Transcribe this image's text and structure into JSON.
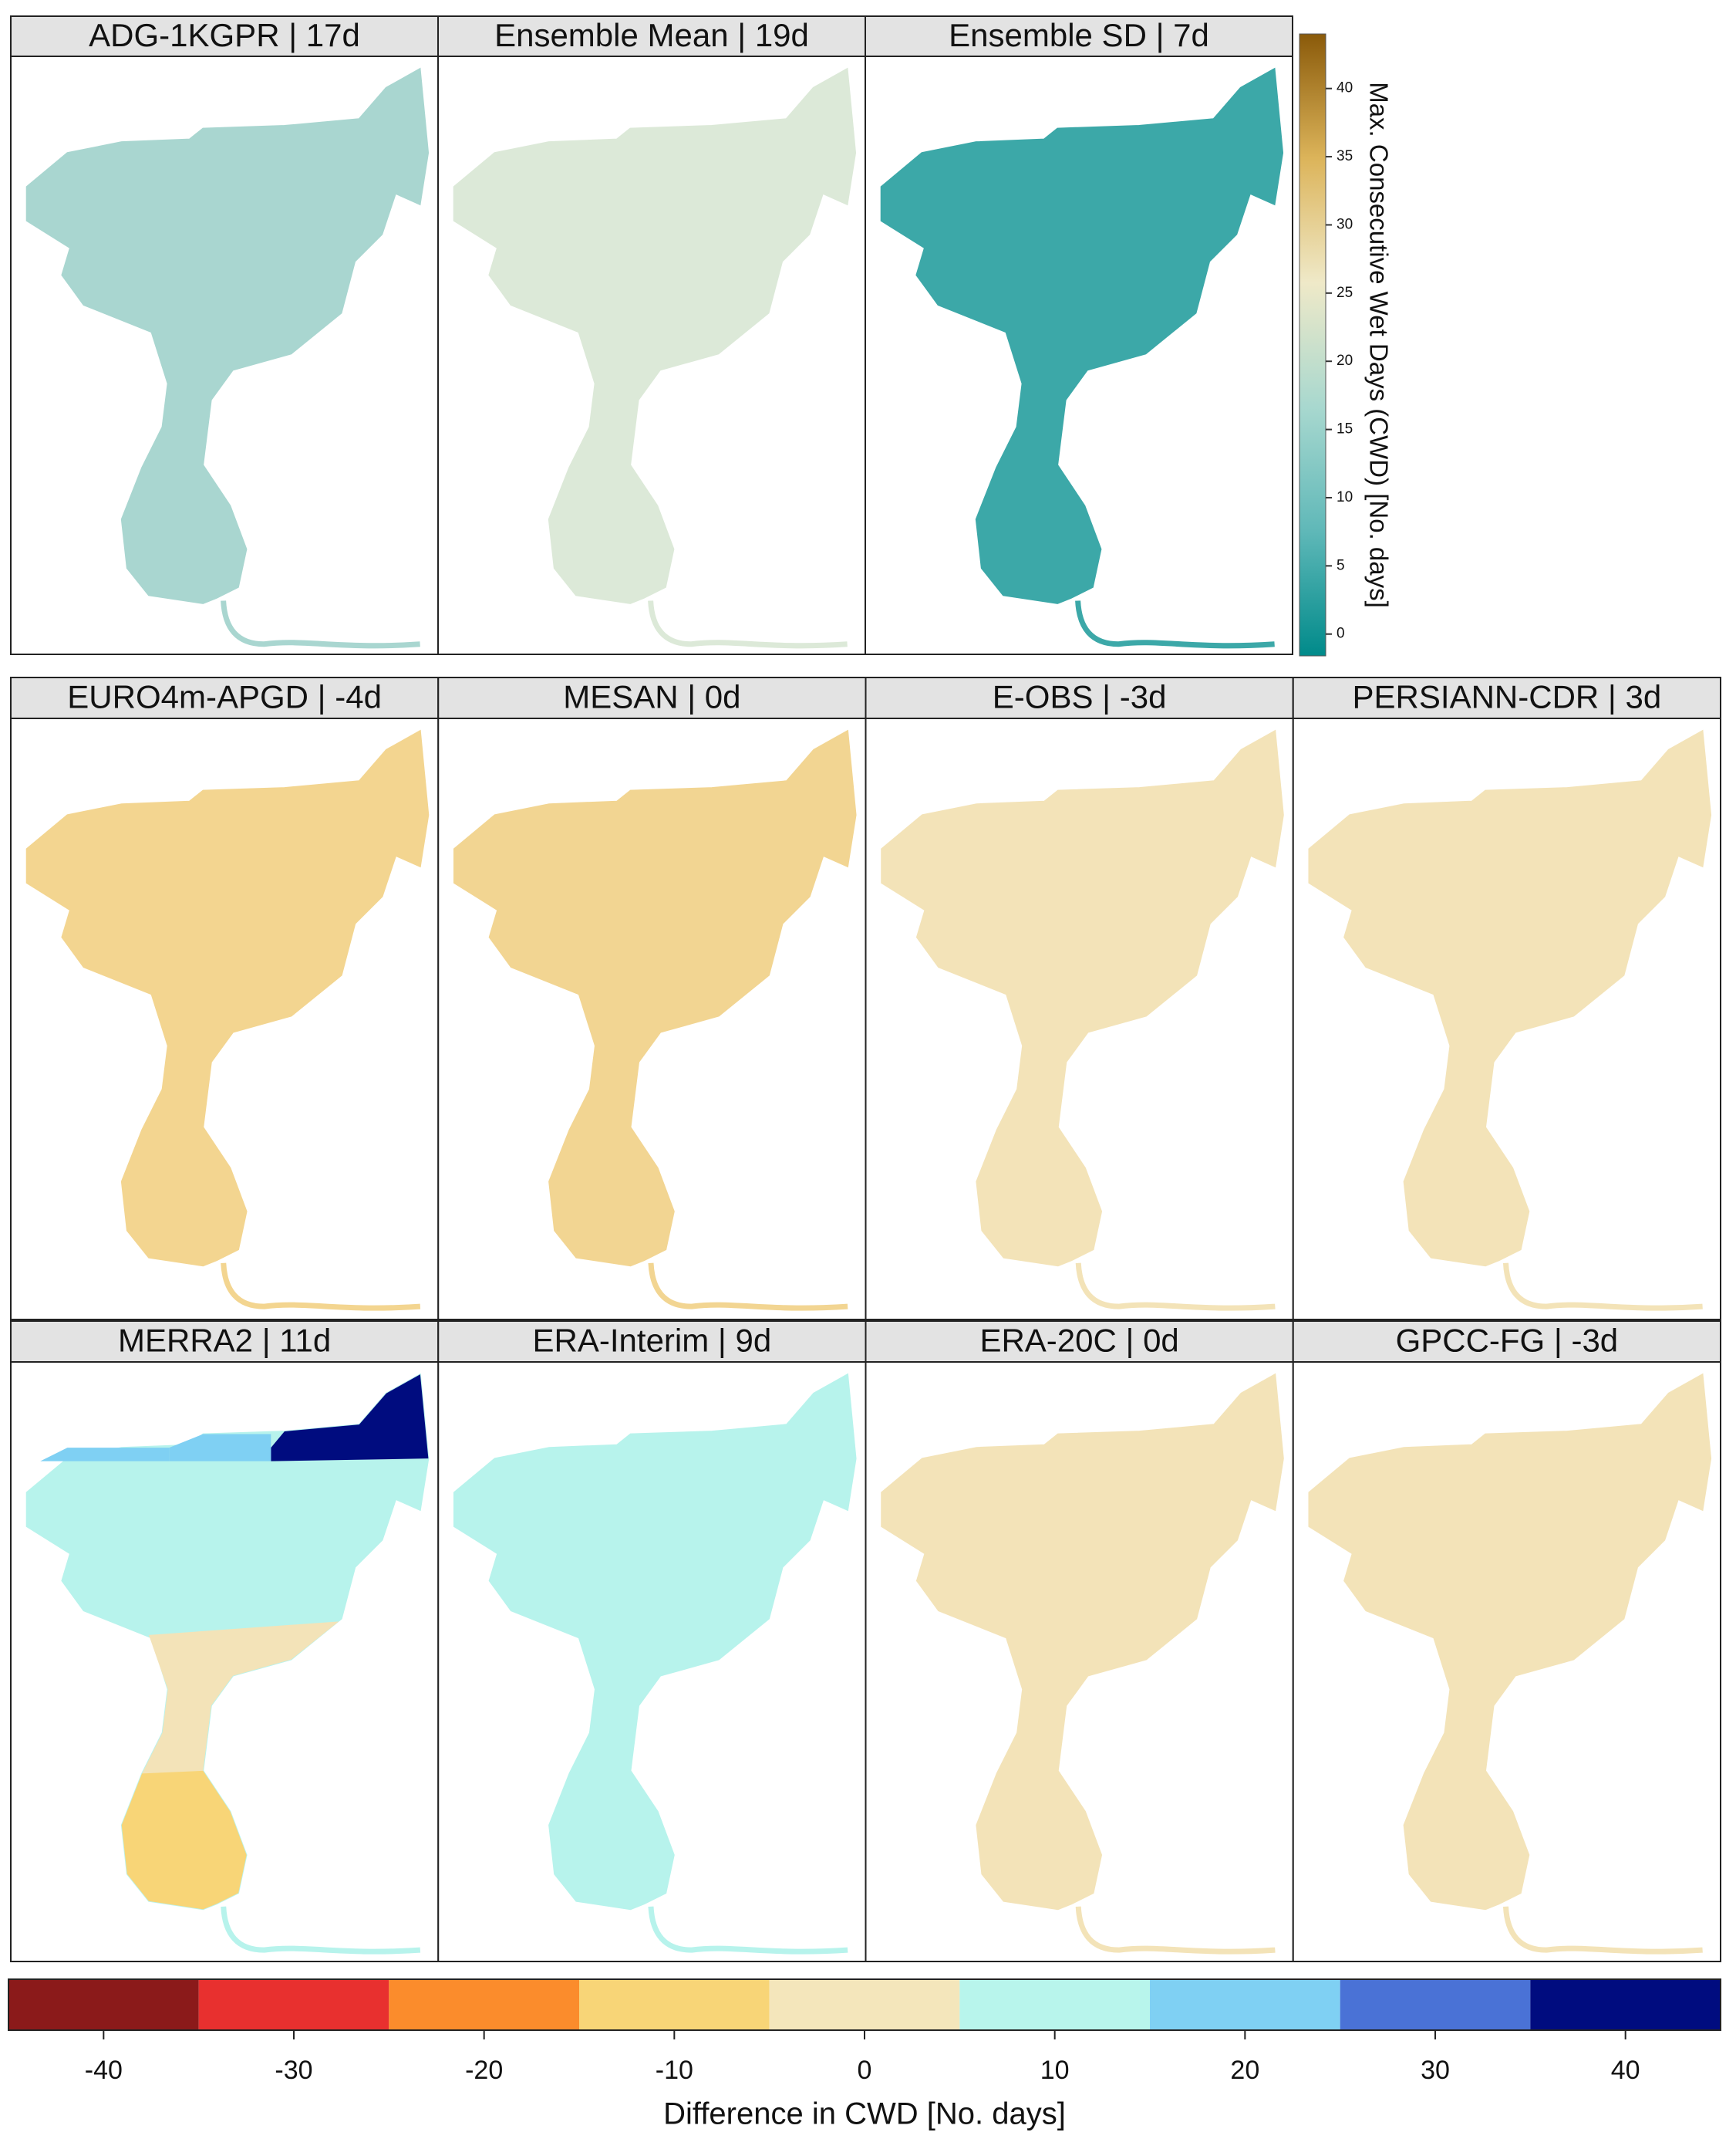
{
  "panels": [
    {
      "title": "ADG-1KGPR | 17d"
    },
    {
      "title": "Ensemble Mean | 19d"
    },
    {
      "title": "Ensemble SD | 7d"
    },
    {
      "title": "EURO4m-APGD | -4d"
    },
    {
      "title": "MESAN | 0d"
    },
    {
      "title": "E-OBS | -3d"
    },
    {
      "title": "PERSIANN-CDR | 3d"
    },
    {
      "title": "MERRA2 | 11d"
    },
    {
      "title": "ERA-Interim | 9d"
    },
    {
      "title": "ERA-20C | 0d"
    },
    {
      "title": "GPCC-FG | -3d"
    }
  ],
  "colorbar_top": {
    "label": "Max. Consecutive Wet Days (CWD) [No. days]",
    "lim": [
      -1.6,
      44
    ],
    "ticks": [
      0,
      5,
      10,
      15,
      20,
      25,
      30,
      35,
      40
    ],
    "colors": [
      "#008a8a",
      "#5fb8b8",
      "#a8d8cf",
      "#efe9c8",
      "#dcb45a",
      "#8a5a0a"
    ]
  },
  "colorbar_bottom": {
    "label": "Difference in CWD [No. days]",
    "bins": [
      -45,
      -35,
      -25,
      -15,
      -5,
      5,
      15,
      25,
      35,
      45
    ],
    "colors": [
      "#8b1a1a",
      "#e8302f",
      "#fb8c2c",
      "#f8d577",
      "#f4e6bb",
      "#b8f5ec",
      "#7fd0f3",
      "#4a72d6",
      "#000c7f"
    ],
    "ticks": [
      -40,
      -30,
      -20,
      -10,
      0,
      10,
      20,
      30,
      40
    ]
  }
}
